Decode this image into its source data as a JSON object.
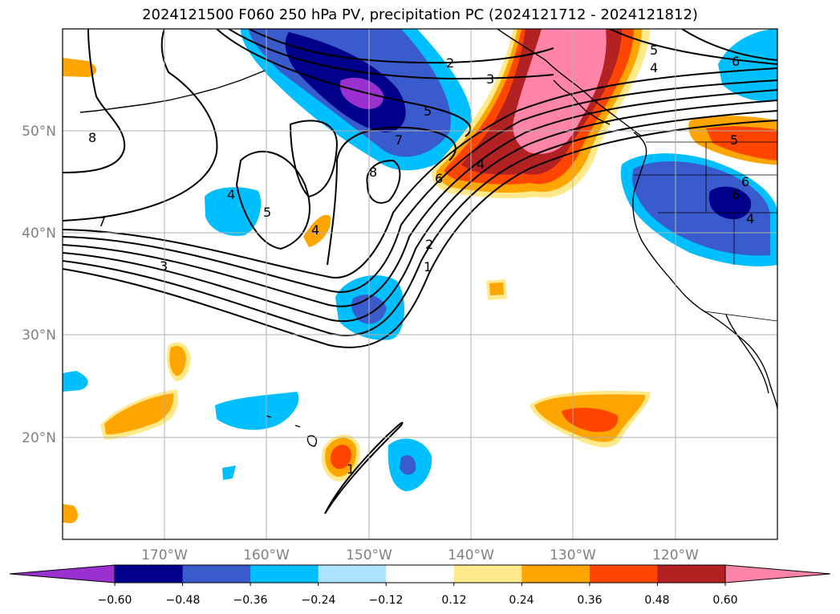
{
  "title": "2024121500 F060 250 hPa PV, precipitation PC (2024121712 - 2024121812)",
  "map": {
    "lon_labels": [
      "170°W",
      "160°W",
      "150°W",
      "140°W",
      "130°W",
      "120°W"
    ],
    "lat_labels": [
      "50°N",
      "40°N",
      "30°N",
      "20°N"
    ],
    "contour_labels": [
      "2",
      "3",
      "5",
      "5",
      "4",
      "6",
      "7",
      "8",
      "8",
      "7",
      "3",
      "4",
      "5",
      "6",
      "4",
      "2",
      "1",
      "1",
      "4",
      "5",
      "6",
      "6",
      "4"
    ]
  },
  "colorbar": {
    "colors": [
      "#9b30d0",
      "#00008b",
      "#3a5bcc",
      "#00bfff",
      "#aee3ff",
      "#ffffff",
      "#ffe98a",
      "#ffa500",
      "#ff4500",
      "#b22222",
      "#ff84a8"
    ],
    "ticks": [
      "−0.60",
      "−0.48",
      "−0.36",
      "−0.24",
      "−0.12",
      "0.12",
      "0.24",
      "0.36",
      "0.48",
      "0.60"
    ]
  }
}
